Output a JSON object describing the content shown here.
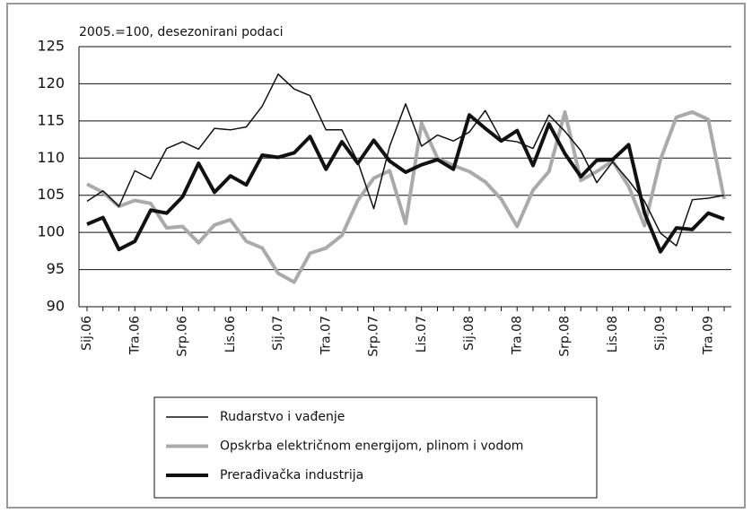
{
  "chart_data": {
    "type": "line",
    "subtitle": "2005.=100, desezonirani podaci",
    "categories": [
      "Sij.06",
      null,
      null,
      "Tra.06",
      null,
      null,
      "Srp.06",
      null,
      null,
      "Lis.06",
      null,
      null,
      "Sij.07",
      null,
      null,
      "Tra.07",
      null,
      null,
      "Srp.07",
      null,
      null,
      "Lis.07",
      null,
      null,
      "Sij.08",
      null,
      null,
      "Tra.08",
      null,
      null,
      "Srp.08",
      null,
      null,
      "Lis.08",
      null,
      null,
      "Sij.09",
      null,
      null,
      "Tra.09",
      null
    ],
    "series": [
      {
        "name": "Rudarstvo i vađenje",
        "color": "#111111",
        "width": 1.5,
        "values": [
          104.2,
          105.6,
          103.5,
          108.3,
          107.2,
          111.3,
          112.2,
          111.2,
          114,
          113.8,
          114.2,
          117,
          121.3,
          119.3,
          118.4,
          113.8,
          113.8,
          109.5,
          103.2,
          111.6,
          117.3,
          111.6,
          113.1,
          112.3,
          113.5,
          116.4,
          112.5,
          112.2,
          111.3,
          115.8,
          113.6,
          111,
          106.7,
          109.5,
          107,
          104.2,
          99.9,
          98.2,
          104.4,
          104.6,
          105
        ]
      },
      {
        "name": "Opskrba električnom energijom, plinom i vodom",
        "color": "#aaaaaa",
        "width": 4,
        "values": [
          106.5,
          105.4,
          103.5,
          104.3,
          103.9,
          100.6,
          100.8,
          98.6,
          101,
          101.7,
          98.8,
          97.9,
          94.5,
          93.3,
          97.2,
          97.9,
          99.6,
          104.3,
          107.3,
          108.3,
          101.2,
          114.7,
          110,
          109,
          108.2,
          106.8,
          104.5,
          100.8,
          105.7,
          108.2,
          116.2,
          107,
          108.2,
          109.6,
          106.2,
          100.9,
          109.8,
          115.5,
          116.2,
          115.2,
          104.5
        ]
      },
      {
        "name": "Prerađivačka industrija",
        "color": "#111111",
        "width": 4,
        "values": [
          101.1,
          102,
          97.7,
          98.8,
          103,
          102.6,
          104.8,
          109.3,
          105.4,
          107.6,
          106.4,
          110.4,
          110.1,
          110.7,
          112.9,
          108.5,
          112.2,
          109.3,
          112.4,
          109.6,
          108.1,
          109.1,
          109.8,
          108.5,
          115.8,
          114,
          112.3,
          113.7,
          109,
          114.6,
          110.6,
          107.5,
          109.7,
          109.8,
          111.8,
          102.6,
          97.4,
          100.6,
          100.4,
          102.6,
          101.8
        ]
      }
    ],
    "ylim": [
      90,
      125
    ],
    "yticks": [
      90,
      95,
      100,
      105,
      110,
      115,
      120,
      125
    ],
    "grid": true
  }
}
